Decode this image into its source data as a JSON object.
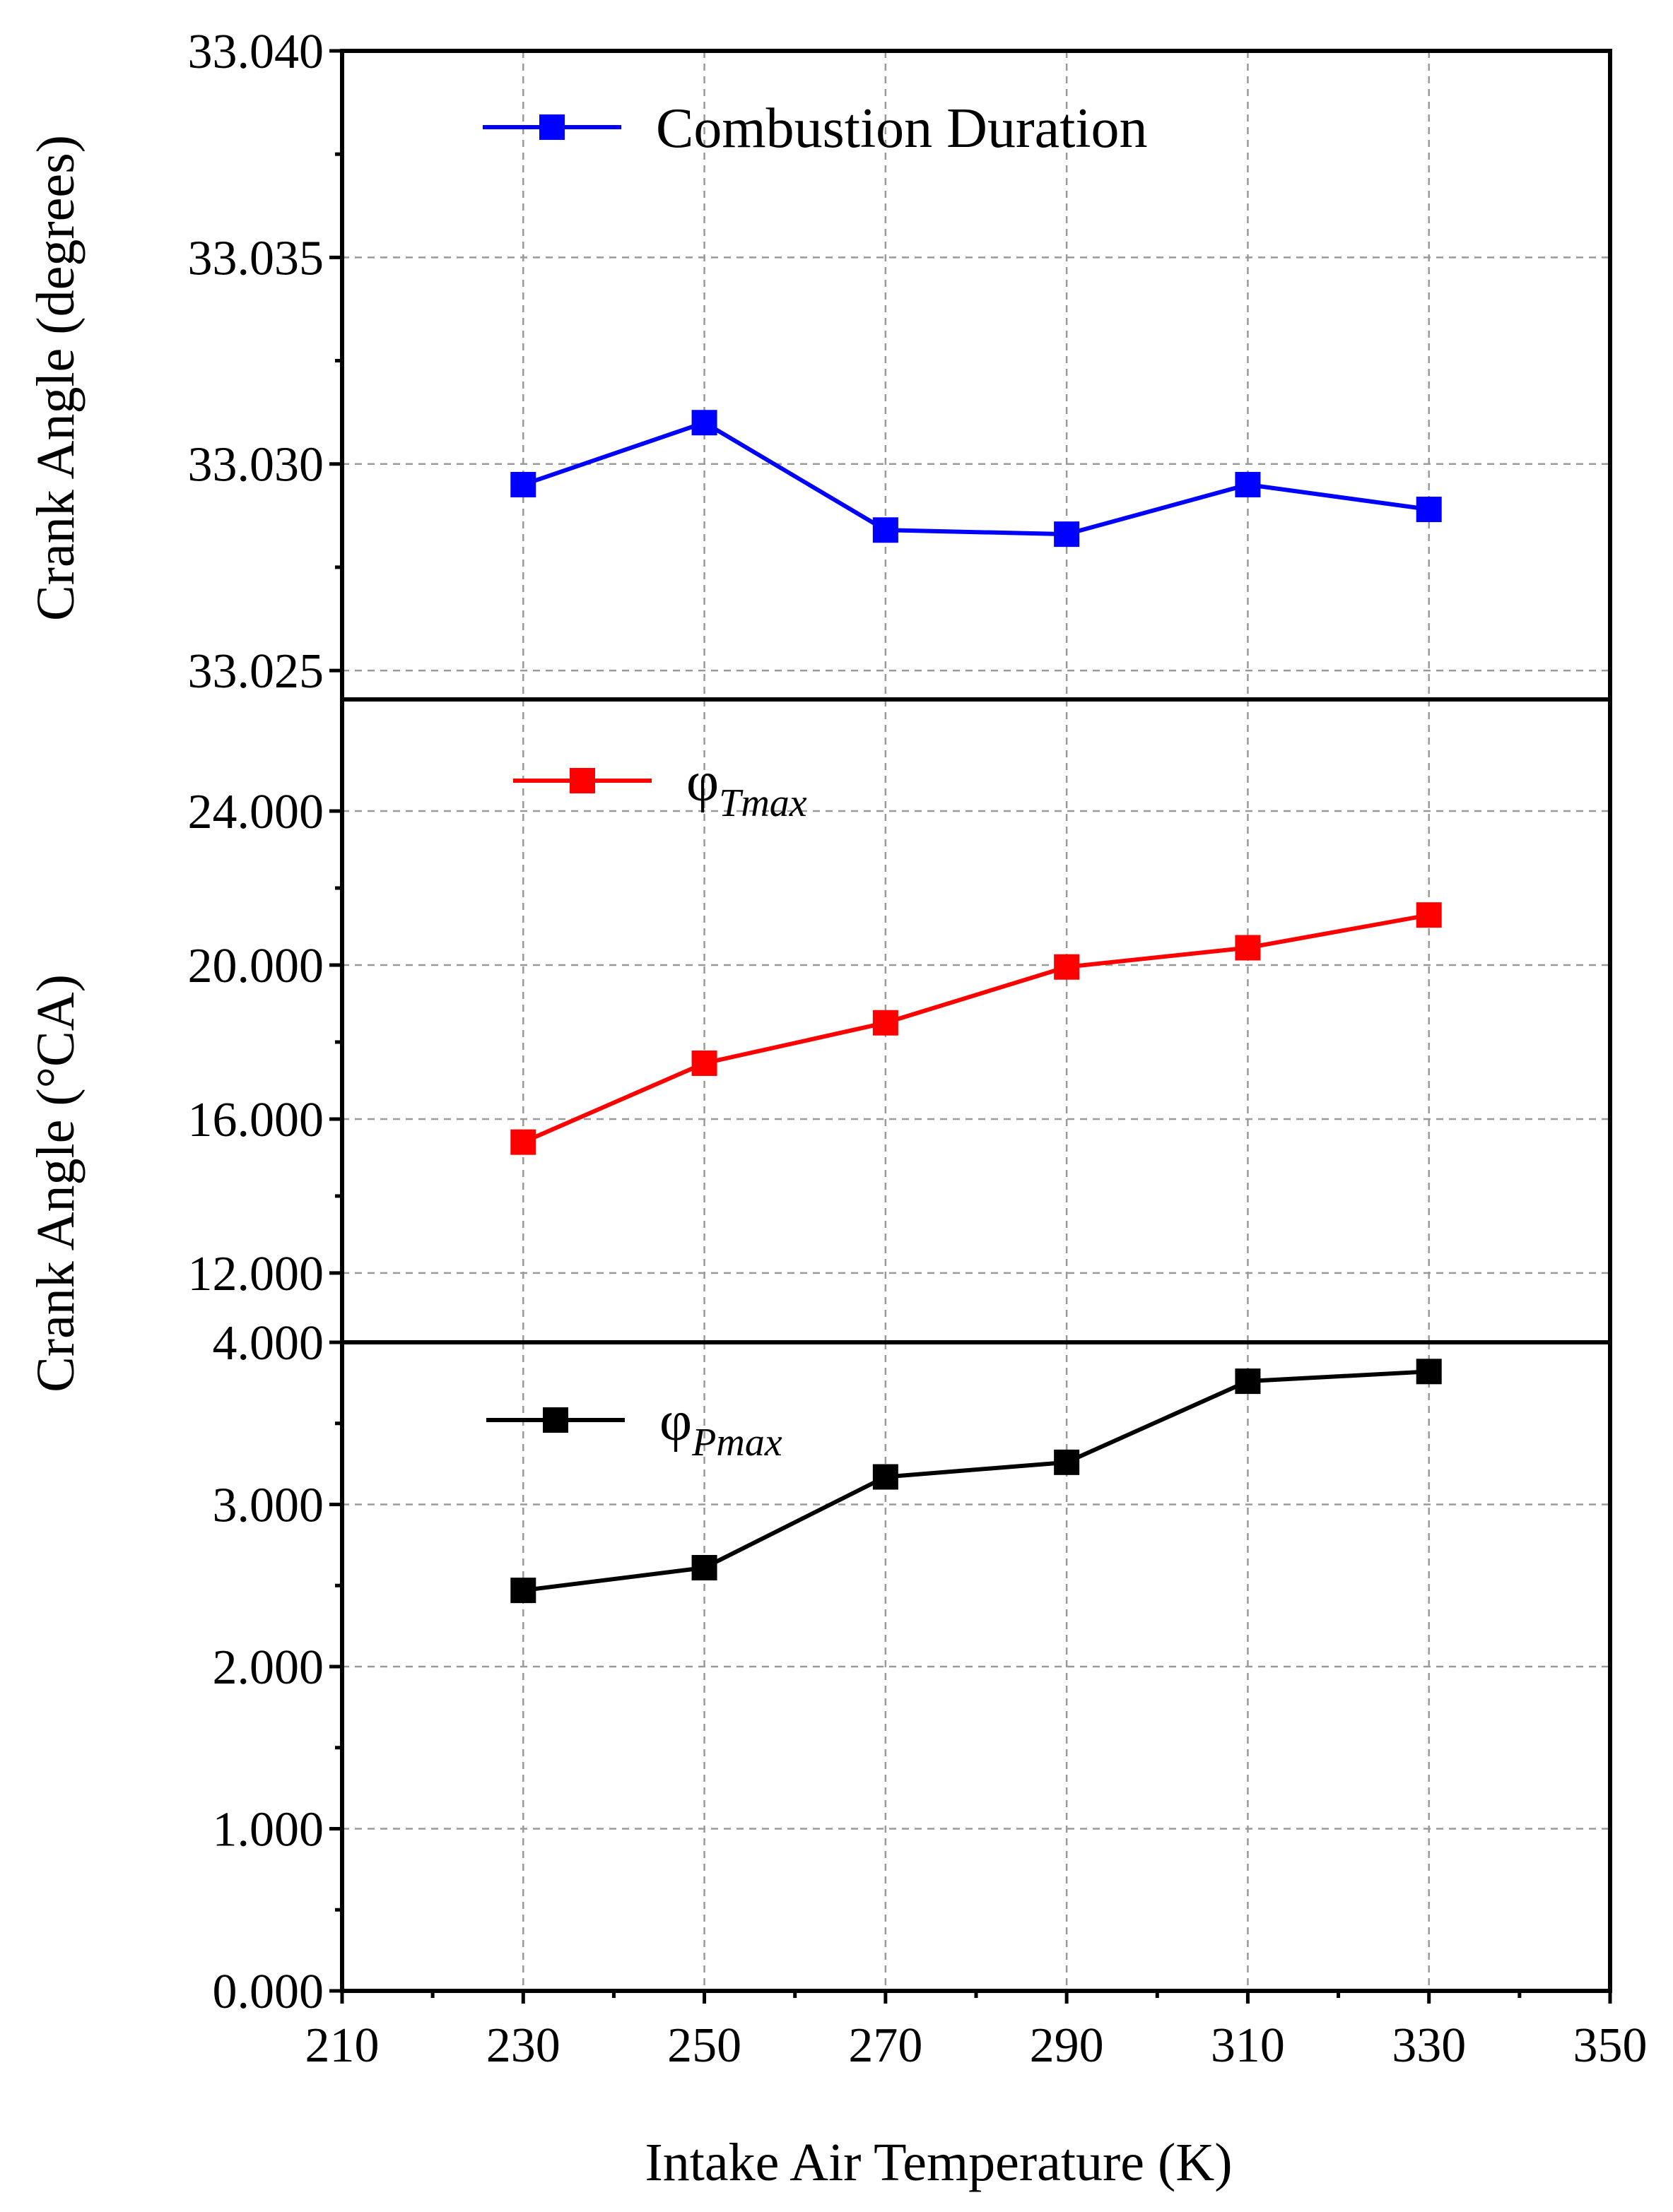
{
  "chart_data": [
    {
      "type": "line",
      "panel": "top",
      "x": [
        230,
        250,
        270,
        290,
        310,
        330
      ],
      "series": [
        {
          "name": "Combustion Duration",
          "values": [
            33.0295,
            33.031,
            33.0284,
            33.0283,
            33.0295,
            33.0289
          ],
          "color": "#0000ff",
          "marker": "square"
        }
      ],
      "ylim": [
        33.0243,
        33.04
      ],
      "yticks": [
        33.025,
        33.03,
        33.035,
        33.04
      ],
      "ytick_labels": [
        "33.025",
        "33.030",
        "33.035",
        "33.040"
      ],
      "ylabel": "Crank Angle (degrees)",
      "legend": {
        "text": "Combustion Duration",
        "position": "top-left"
      },
      "grid": true
    },
    {
      "type": "line",
      "panel": "middle",
      "x": [
        230,
        250,
        270,
        290,
        310,
        330
      ],
      "series": [
        {
          "name": "φTmax",
          "values": [
            15.4,
            17.45,
            18.5,
            19.95,
            20.45,
            21.3
          ],
          "color": "#ff0000",
          "marker": "square"
        }
      ],
      "ylim": [
        10.2,
        26.9
      ],
      "yticks": [
        12,
        16,
        20,
        24
      ],
      "ytick_labels": [
        "12.000",
        "16.000",
        "20.000",
        "24.000"
      ],
      "legend": {
        "text": "φ",
        "subscript": "Tmax",
        "position": "top-left"
      },
      "grid": true
    },
    {
      "type": "line",
      "panel": "bottom",
      "x": [
        230,
        250,
        270,
        290,
        310,
        330
      ],
      "series": [
        {
          "name": "φPmax",
          "values": [
            2.47,
            2.61,
            3.17,
            3.26,
            3.76,
            3.82
          ],
          "color": "#000000",
          "marker": "square"
        }
      ],
      "ylim": [
        0,
        4
      ],
      "yticks": [
        0,
        1,
        2,
        3,
        4
      ],
      "ytick_labels": [
        "0.000",
        "1.000",
        "2.000",
        "3.000",
        "4.000"
      ],
      "legend": {
        "text": "φ",
        "subscript": "Pmax",
        "position": "top-left"
      },
      "grid": true
    }
  ],
  "shared": {
    "xlim": [
      210,
      350
    ],
    "xticks": [
      210,
      230,
      250,
      270,
      290,
      310,
      330,
      350
    ],
    "xtick_labels": [
      "210",
      "230",
      "250",
      "270",
      "290",
      "310",
      "330",
      "350"
    ],
    "xlabel": "Intake Air Temperature (K)",
    "ylabel_shared": "Crank Angle (°CA)"
  }
}
